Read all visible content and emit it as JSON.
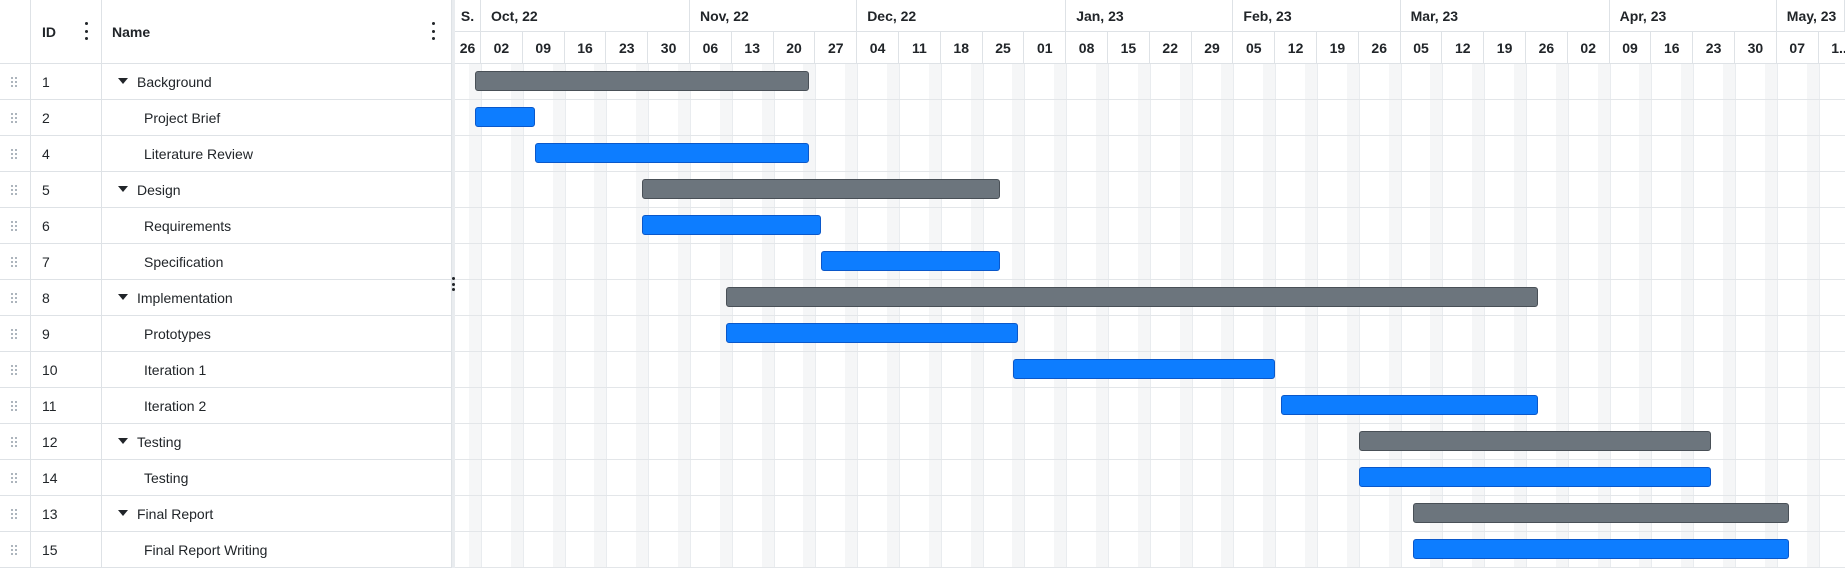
{
  "grid": {
    "columns": {
      "id_header": "ID",
      "name_header": "Name"
    },
    "rows": [
      {
        "id": "1",
        "name": "Background",
        "parent": true,
        "bar": "summary",
        "start": "2022-10-01",
        "end": "2022-11-26"
      },
      {
        "id": "2",
        "name": "Project Brief",
        "parent": false,
        "bar": "task",
        "start": "2022-10-01",
        "end": "2022-10-11"
      },
      {
        "id": "4",
        "name": "Literature Review",
        "parent": false,
        "bar": "task",
        "start": "2022-10-11",
        "end": "2022-11-26"
      },
      {
        "id": "5",
        "name": "Design",
        "parent": true,
        "bar": "summary",
        "start": "2022-10-29",
        "end": "2022-12-28"
      },
      {
        "id": "6",
        "name": "Requirements",
        "parent": false,
        "bar": "task",
        "start": "2022-10-29",
        "end": "2022-11-28"
      },
      {
        "id": "7",
        "name": "Specification",
        "parent": false,
        "bar": "task",
        "start": "2022-11-28",
        "end": "2022-12-28"
      },
      {
        "id": "8",
        "name": "Implementation",
        "parent": true,
        "bar": "summary",
        "start": "2022-11-12",
        "end": "2023-03-28"
      },
      {
        "id": "9",
        "name": "Prototypes",
        "parent": false,
        "bar": "task",
        "start": "2022-11-12",
        "end": "2022-12-31"
      },
      {
        "id": "10",
        "name": "Iteration 1",
        "parent": false,
        "bar": "task",
        "start": "2022-12-30",
        "end": "2023-02-12"
      },
      {
        "id": "11",
        "name": "Iteration 2",
        "parent": false,
        "bar": "task",
        "start": "2023-02-13",
        "end": "2023-03-28"
      },
      {
        "id": "12",
        "name": "Testing",
        "parent": true,
        "bar": "summary",
        "start": "2023-02-26",
        "end": "2023-04-26"
      },
      {
        "id": "14",
        "name": "Testing",
        "parent": false,
        "bar": "task",
        "start": "2023-02-26",
        "end": "2023-04-26"
      },
      {
        "id": "13",
        "name": "Final Report",
        "parent": true,
        "bar": "summary",
        "start": "2023-03-07",
        "end": "2023-05-09"
      },
      {
        "id": "15",
        "name": "Final Report Writing",
        "parent": false,
        "bar": "task",
        "start": "2023-03-07",
        "end": "2023-05-09"
      }
    ]
  },
  "timeline": {
    "months": [
      "S.",
      "Oct, 22",
      "Nov, 22",
      "Dec, 22",
      "Jan, 23",
      "Feb, 23",
      "Mar, 23",
      "Apr, 23",
      "May, 23"
    ],
    "weeks": [
      "26",
      "02",
      "09",
      "16",
      "23",
      "30",
      "06",
      "13",
      "20",
      "27",
      "04",
      "11",
      "18",
      "25",
      "01",
      "08",
      "15",
      "22",
      "29",
      "05",
      "12",
      "19",
      "26",
      "05",
      "12",
      "19",
      "26",
      "02",
      "09",
      "16",
      "23",
      "30",
      "07",
      "1.."
    ]
  },
  "colors": {
    "summary_bar": "#6c757d",
    "task_bar": "#0d7dff",
    "grid_border": "#dee2e6"
  }
}
